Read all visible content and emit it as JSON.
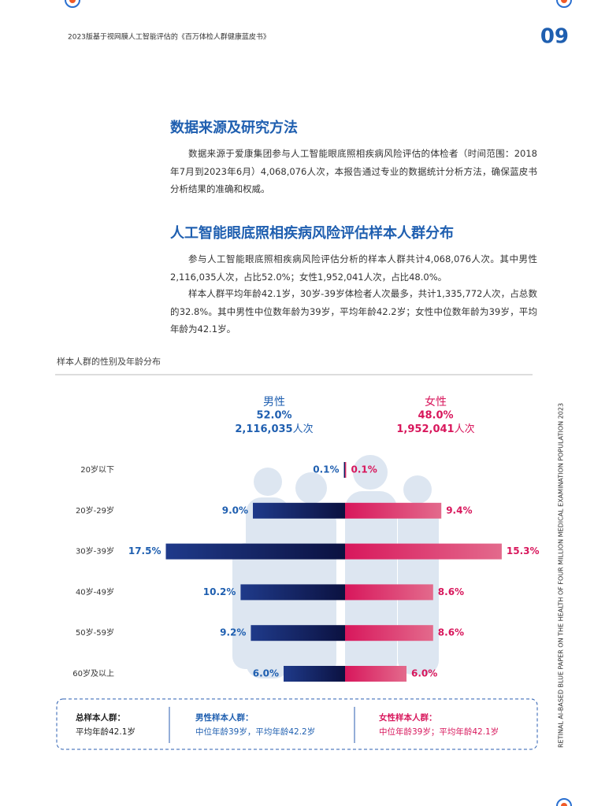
{
  "header": {
    "title": "2023版基于视网膜人工智能评估的《百万体检人群健康蓝皮书》",
    "page": "09"
  },
  "sections": [
    {
      "title": "数据来源及研究方法",
      "paragraphs": [
        "数据来源于爱康集团参与人工智能眼底照相疾病风险评估的体检者（时间范围：2018年7月到2023年6月）4,068,076人次，本报告通过专业的数据统计分析方法，确保蓝皮书分析结果的准确和权威。"
      ]
    },
    {
      "title": "人工智能眼底照相疾病风险评估样本人群分布",
      "paragraphs": [
        "参与人工智能眼底照相疾病风险评估分析的样本人群共计4,068,076人次。其中男性2,116,035人次，占比52.0%；女性1,952,041人次，占比48.0%。",
        "样本人群平均年龄42.1岁，30岁-39岁体检者人次最多，共计1,335,772人次，占总数的32.8%。其中男性中位数年龄为39岁，平均年龄42.2岁；女性中位数年龄为39岁，平均年龄为42.1岁。"
      ]
    }
  ],
  "chart_data": {
    "type": "bar",
    "title": "样本人群的性别及年龄分布",
    "categories": [
      "20岁以下",
      "20岁-29岁",
      "30岁-39岁",
      "40岁-49岁",
      "50岁-59岁",
      "60岁及以上"
    ],
    "series": [
      {
        "name": "男性",
        "share": "52.0%",
        "count": "2,116,035",
        "unit": "人次",
        "color": "#1f5fb0",
        "values": [
          0.1,
          9.0,
          17.5,
          10.2,
          9.2,
          6.0
        ],
        "value_labels": [
          "0.1%",
          "9.0%",
          "17.5%",
          "10.2%",
          "9.2%",
          "6.0%"
        ]
      },
      {
        "name": "女性",
        "share": "48.0%",
        "count": "1,952,041",
        "unit": "人次",
        "color": "#d8175c",
        "values": [
          0.1,
          9.4,
          15.3,
          8.6,
          8.6,
          6.0
        ],
        "value_labels": [
          "0.1%",
          "9.4%",
          "15.3%",
          "8.6%",
          "8.6%",
          "6.0%"
        ]
      }
    ]
  },
  "summary": [
    {
      "title": "总样本人群：",
      "text": "平均年龄42.1岁"
    },
    {
      "title": "男性样本人群：",
      "text": "中位年龄39岁，平均年龄42.2岁"
    },
    {
      "title": "女性样本人群：",
      "text": "中位年龄39岁；平均年龄42.1岁"
    }
  ],
  "side_text": "RETINAL AI-BASED BLUE PAPER ON THE HEALTH OF FOUR MILLION MEDICAL EXAMINATION POPULATION 2023"
}
